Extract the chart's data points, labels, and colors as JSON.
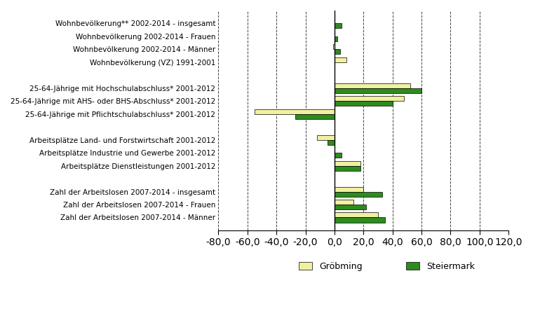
{
  "categories": [
    "Wohnbevölkerung** 2002-2014 - insgesamt",
    "Wohnbevölkerung 2002-2014 - Frauen",
    "Wohnbevölkerung 2002-2014 - Männer",
    "Wohnbevölkerung (VZ) 1991-2001",
    "",
    "25-64-Jährige mit Hochschulabschluss* 2001-2012",
    "25-64-Jährige mit AHS- oder BHS-Abschluss* 2001-2012",
    "25-64-Jährige mit Pflichtschulabschluss* 2001-2012",
    "",
    "Arbeitsplätze Land- und Forstwirtschaft 2001-2012",
    "Arbeitsplätze Industrie und Gewerbe 2001-2012",
    "Arbeitsplätze Dienstleistungen 2001-2012",
    "",
    "Zahl der Arbeitslosen 2007-2014 - insgesamt",
    "Zahl der Arbeitslosen 2007-2014 - Frauen",
    "Zahl der Arbeitslosen 2007-2014 - Männer"
  ],
  "grobming": [
    0,
    0,
    -1,
    8,
    0,
    52,
    48,
    -55,
    0,
    -12,
    0,
    18,
    0,
    20,
    13,
    30
  ],
  "steiermark": [
    5,
    2,
    4,
    0,
    0,
    60,
    40,
    -27,
    0,
    -5,
    5,
    18,
    0,
    33,
    22,
    35
  ],
  "color_grobming": "#f0f0a0",
  "color_steiermark": "#2d8c1e",
  "xlim_min": -80,
  "xlim_max": 120,
  "xticks": [
    -80,
    -60,
    -40,
    -20,
    0,
    20,
    40,
    60,
    80,
    100,
    120
  ],
  "xtick_labels": [
    "-80,0",
    "-60,0",
    "-40,0",
    "-20,0",
    "0,0",
    "20,0",
    "40,0",
    "60,0",
    "80,0",
    "100,0",
    "120,0"
  ],
  "legend_grobming": "Gröbming",
  "legend_steiermark": "Steiermark",
  "background_color": "#ffffff",
  "bar_height": 0.38,
  "fontsize_labels": 7.5,
  "fontsize_ticks": 7.5,
  "spacer_indices": [
    4,
    8,
    12
  ]
}
